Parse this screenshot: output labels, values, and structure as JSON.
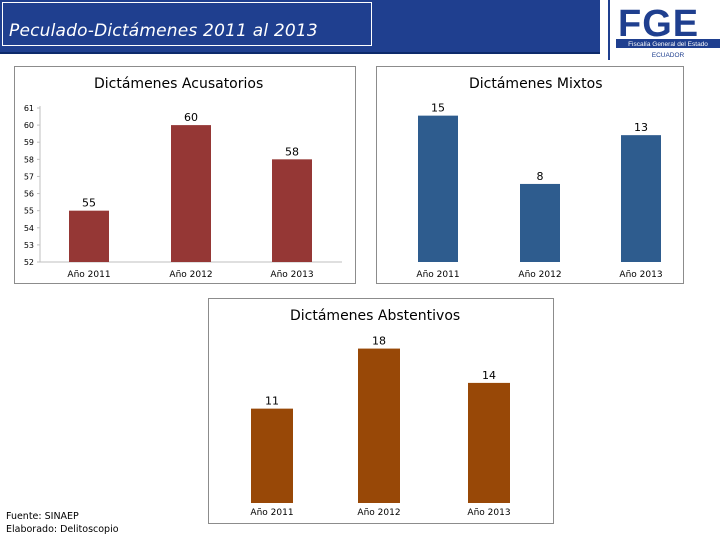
{
  "header": {
    "title": "Peculado-Dictámenes 2011 al 2013",
    "logo_text": "FGE",
    "logo_subtitle": "Fiscalía General del Estado",
    "logo_country": "ECUADOR",
    "colors": {
      "bar_bg": "#1f3f8f",
      "logo_blue": "#1f3f8f",
      "logo_red": "#c1272d"
    }
  },
  "footer": {
    "source": "Fuente: SINAEP",
    "author": "Elaborado: Delitoscopio"
  },
  "chart_data": [
    {
      "type": "bar",
      "title": "Dictámenes Acusatorios",
      "categories": [
        "Año 2011",
        "Año 2012",
        "Año 2013"
      ],
      "values": [
        55,
        60,
        58
      ],
      "ylim": [
        52,
        61
      ],
      "yticks": [
        52,
        53,
        54,
        55,
        56,
        57,
        58,
        59,
        60,
        61
      ],
      "show_yaxis": true,
      "color": "#953735",
      "grid": false
    },
    {
      "type": "bar",
      "title": "Dictámenes Mixtos",
      "categories": [
        "Año 2011",
        "Año 2012",
        "Año 2013"
      ],
      "values": [
        15,
        8,
        13
      ],
      "ylim": [
        0,
        16.5
      ],
      "show_yaxis": false,
      "color": "#2e5c8e",
      "grid": false
    },
    {
      "type": "bar",
      "title": "Dictámenes Abstentivos",
      "categories": [
        "Año 2011",
        "Año 2012",
        "Año 2013"
      ],
      "values": [
        11,
        18,
        14
      ],
      "ylim": [
        0,
        19
      ],
      "show_yaxis": false,
      "color": "#984807",
      "grid": false
    }
  ]
}
